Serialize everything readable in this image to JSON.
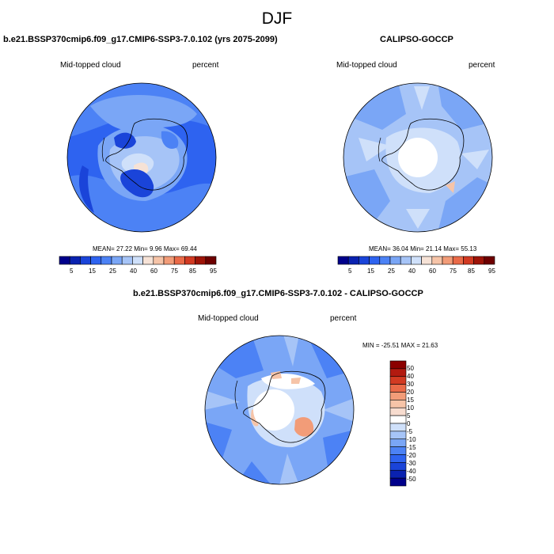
{
  "page": {
    "title": "DJF"
  },
  "panels": [
    {
      "case_title": "b.e21.BSSP370cmip6.f09_g17.CMIP6-SSP3-7.0.102 (yrs 2075-2099)",
      "variable": "Mid-topped cloud",
      "units": "percent",
      "stats": "MEAN=  27.22  Min=   9.96  Max=  69.44",
      "colorbar_labels": [
        "5",
        "15",
        "25",
        "40",
        "60",
        "75",
        "85",
        "95"
      ]
    },
    {
      "case_title": "CALIPSO-GOCCP",
      "variable": "Mid-topped cloud",
      "units": "percent",
      "stats": "MEAN=  36.04  Min=  21.14  Max=  55.13",
      "colorbar_labels": [
        "5",
        "15",
        "25",
        "40",
        "60",
        "75",
        "85",
        "95"
      ]
    },
    {
      "case_title": "b.e21.BSSP370cmip6.f09_g17.CMIP6-SSP3-7.0.102 - CALIPSO-GOCCP",
      "variable": "Mid-topped cloud",
      "units": "percent",
      "stats": "MIN = -25.51 MAX =  21.63",
      "colorbar_labels": [
        "50",
        "40",
        "30",
        "20",
        "15",
        "10",
        "5",
        "0",
        "-5",
        "-10",
        "-15",
        "-20",
        "-30",
        "-40",
        "-50"
      ]
    }
  ],
  "colors": {
    "abs_scale": [
      "#00008b",
      "#0a22b0",
      "#1a44d9",
      "#2e63f0",
      "#4c82f5",
      "#7aa6f6",
      "#a6c4f7",
      "#cfe0fa",
      "#f6e2d6",
      "#f6c4a8",
      "#f29c78",
      "#ea6a48",
      "#d23a22",
      "#9e1408",
      "#6e0000"
    ],
    "diff_scale": [
      "#8b0000",
      "#b21a10",
      "#d23a22",
      "#ea6a48",
      "#f29c78",
      "#f6c4a8",
      "#f7dccf",
      "#ffffff",
      "#cfe0fa",
      "#a6c4f7",
      "#7aa6f6",
      "#4c82f5",
      "#2e63f0",
      "#1a44d9",
      "#0a22b0",
      "#00008b"
    ]
  }
}
